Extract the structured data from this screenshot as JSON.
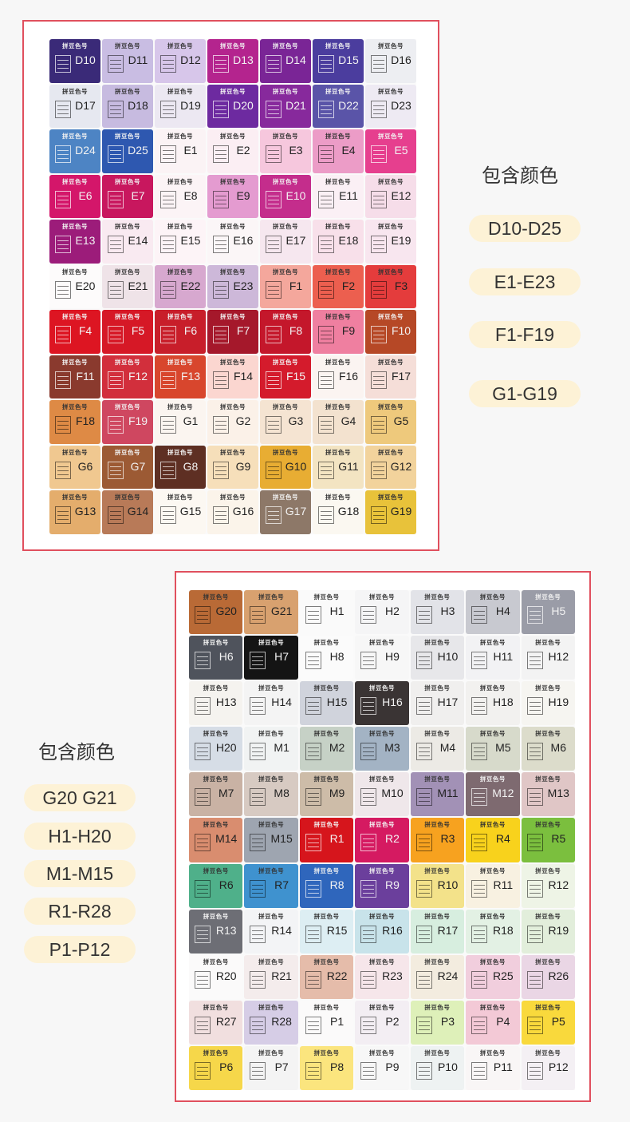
{
  "brand_label": "拼豆色号",
  "section1": {
    "title": "包含颜色",
    "ranges": [
      "D10-D25",
      "E1-E23",
      "F1-F19",
      "G1-G19"
    ],
    "swatches": [
      {
        "code": "D10",
        "color": "#3a2a78",
        "dark": true
      },
      {
        "code": "D11",
        "color": "#c9bde3"
      },
      {
        "code": "D12",
        "color": "#d7c6ea"
      },
      {
        "code": "D13",
        "color": "#b4248e",
        "dark": true
      },
      {
        "code": "D14",
        "color": "#7a2596",
        "dark": true
      },
      {
        "code": "D15",
        "color": "#4b3d9e",
        "dark": true
      },
      {
        "code": "D16",
        "color": "#edeef2"
      },
      {
        "code": "D17",
        "color": "#e6e8f0"
      },
      {
        "code": "D18",
        "color": "#c7bbe0"
      },
      {
        "code": "D19",
        "color": "#ece8f2"
      },
      {
        "code": "D20",
        "color": "#6d2aa0",
        "dark": true
      },
      {
        "code": "D21",
        "color": "#87299c",
        "dark": true
      },
      {
        "code": "D22",
        "color": "#5a54a8",
        "dark": true
      },
      {
        "code": "D23",
        "color": "#eeeaf3"
      },
      {
        "code": "D24",
        "color": "#4d84c4",
        "dark": true
      },
      {
        "code": "D25",
        "color": "#2e58b0",
        "dark": true
      },
      {
        "code": "E1",
        "color": "#fbf3f5"
      },
      {
        "code": "E2",
        "color": "#fbeef3"
      },
      {
        "code": "E3",
        "color": "#f6c7dd"
      },
      {
        "code": "E4",
        "color": "#ec9cc7"
      },
      {
        "code": "E5",
        "color": "#e63f8e",
        "dark": true
      },
      {
        "code": "E6",
        "color": "#d4166a",
        "dark": true
      },
      {
        "code": "E7",
        "color": "#c8175e",
        "dark": true
      },
      {
        "code": "E8",
        "color": "#fcf4f6"
      },
      {
        "code": "E9",
        "color": "#e49bd0"
      },
      {
        "code": "E10",
        "color": "#c42d8c",
        "dark": true
      },
      {
        "code": "E11",
        "color": "#fbf0f5"
      },
      {
        "code": "E12",
        "color": "#f6dde9"
      },
      {
        "code": "E13",
        "color": "#9c1c7a",
        "dark": true
      },
      {
        "code": "E14",
        "color": "#f9eaf1"
      },
      {
        "code": "E15",
        "color": "#fdf4f7"
      },
      {
        "code": "E16",
        "color": "#fbf6f7"
      },
      {
        "code": "E17",
        "color": "#f6e7ef"
      },
      {
        "code": "E18",
        "color": "#f8e0ea"
      },
      {
        "code": "E19",
        "color": "#f8e6ef"
      },
      {
        "code": "E20",
        "color": "#fdfbfb"
      },
      {
        "code": "E21",
        "color": "#efe3e8"
      },
      {
        "code": "E22",
        "color": "#d7a8cf"
      },
      {
        "code": "E23",
        "color": "#cdb8d9"
      },
      {
        "code": "F1",
        "color": "#f4a79c"
      },
      {
        "code": "F2",
        "color": "#ec5f4f"
      },
      {
        "code": "F3",
        "color": "#e43c3c"
      },
      {
        "code": "F4",
        "color": "#dd1522",
        "dark": true
      },
      {
        "code": "F5",
        "color": "#d61826",
        "dark": true
      },
      {
        "code": "F6",
        "color": "#c81e2a",
        "dark": true
      },
      {
        "code": "F7",
        "color": "#a5182b",
        "dark": true
      },
      {
        "code": "F8",
        "color": "#c4172b",
        "dark": true
      },
      {
        "code": "F9",
        "color": "#ef7fa0"
      },
      {
        "code": "F10",
        "color": "#b64826",
        "dark": true
      },
      {
        "code": "F11",
        "color": "#8a3a2e",
        "dark": true
      },
      {
        "code": "F12",
        "color": "#d22f3c",
        "dark": true
      },
      {
        "code": "F13",
        "color": "#d8462d",
        "dark": true
      },
      {
        "code": "F14",
        "color": "#fbd6d0"
      },
      {
        "code": "F15",
        "color": "#d41b2c",
        "dark": true
      },
      {
        "code": "F16",
        "color": "#fbf4f1"
      },
      {
        "code": "F17",
        "color": "#f5ded8"
      },
      {
        "code": "F18",
        "color": "#de8a45"
      },
      {
        "code": "F19",
        "color": "#cf4760",
        "dark": true
      },
      {
        "code": "G1",
        "color": "#fbf5f0"
      },
      {
        "code": "G2",
        "color": "#fbf1e8"
      },
      {
        "code": "G3",
        "color": "#f5e4d2"
      },
      {
        "code": "G4",
        "color": "#f3e2cf"
      },
      {
        "code": "G5",
        "color": "#eec97c"
      },
      {
        "code": "G6",
        "color": "#f0c890"
      },
      {
        "code": "G7",
        "color": "#9c5a34",
        "dark": true
      },
      {
        "code": "G8",
        "color": "#5e2f23",
        "dark": true
      },
      {
        "code": "G9",
        "color": "#f6dfba"
      },
      {
        "code": "G10",
        "color": "#e8ad33"
      },
      {
        "code": "G11",
        "color": "#f3e4c2"
      },
      {
        "code": "G12",
        "color": "#f2d39c"
      },
      {
        "code": "G13",
        "color": "#e4ad6c"
      },
      {
        "code": "G14",
        "color": "#b87a58"
      },
      {
        "code": "G15",
        "color": "#fcf8f2"
      },
      {
        "code": "G16",
        "color": "#fbf4ea"
      },
      {
        "code": "G17",
        "color": "#8d7868",
        "dark": true
      },
      {
        "code": "G18",
        "color": "#fbf8f1"
      },
      {
        "code": "G19",
        "color": "#e8c23a"
      }
    ]
  },
  "section2": {
    "title": "包含颜色",
    "ranges": [
      "G20 G21",
      "H1-H20",
      "M1-M15",
      "R1-R28",
      "P1-P12"
    ],
    "swatches": [
      {
        "code": "G20",
        "color": "#b96a36"
      },
      {
        "code": "G21",
        "color": "#d8a16f"
      },
      {
        "code": "H1",
        "color": "#fafafa"
      },
      {
        "code": "H2",
        "color": "#f5f5f6"
      },
      {
        "code": "H3",
        "color": "#e2e3e8"
      },
      {
        "code": "H4",
        "color": "#c8c9d0"
      },
      {
        "code": "H5",
        "color": "#9a9ca7",
        "dark": true
      },
      {
        "code": "H6",
        "color": "#4f535c",
        "dark": true
      },
      {
        "code": "H7",
        "color": "#141414",
        "dark": true
      },
      {
        "code": "H8",
        "color": "#fbfbfb"
      },
      {
        "code": "H9",
        "color": "#f7f7f7"
      },
      {
        "code": "H10",
        "color": "#e7e7ea"
      },
      {
        "code": "H11",
        "color": "#f2f2f4"
      },
      {
        "code": "H12",
        "color": "#f3f3f3"
      },
      {
        "code": "H13",
        "color": "#f5f3ef"
      },
      {
        "code": "H14",
        "color": "#f4f4f4"
      },
      {
        "code": "H15",
        "color": "#d0d3dc"
      },
      {
        "code": "H16",
        "color": "#3a3434",
        "dark": true
      },
      {
        "code": "H17",
        "color": "#f0efee"
      },
      {
        "code": "H18",
        "color": "#f2f1ef"
      },
      {
        "code": "H19",
        "color": "#f6f5f1"
      },
      {
        "code": "H20",
        "color": "#d6dde6"
      },
      {
        "code": "M1",
        "color": "#f1f3f3"
      },
      {
        "code": "M2",
        "color": "#c6d1c6"
      },
      {
        "code": "M3",
        "color": "#a3b3c4"
      },
      {
        "code": "M4",
        "color": "#eceae5"
      },
      {
        "code": "M5",
        "color": "#d7dacb"
      },
      {
        "code": "M6",
        "color": "#dcdccb"
      },
      {
        "code": "M7",
        "color": "#c9b2a4"
      },
      {
        "code": "M8",
        "color": "#d7cac2"
      },
      {
        "code": "M9",
        "color": "#cdbca8"
      },
      {
        "code": "M10",
        "color": "#efe7ea"
      },
      {
        "code": "M11",
        "color": "#a291b6"
      },
      {
        "code": "M12",
        "color": "#7e6a70",
        "dark": true
      },
      {
        "code": "M13",
        "color": "#e0c6c6"
      },
      {
        "code": "M14",
        "color": "#d98d6f"
      },
      {
        "code": "M15",
        "color": "#9ea5b0"
      },
      {
        "code": "R1",
        "color": "#d6151c",
        "dark": true
      },
      {
        "code": "R2",
        "color": "#d51a61",
        "dark": true
      },
      {
        "code": "R3",
        "color": "#f7a21f"
      },
      {
        "code": "R4",
        "color": "#f8d21c"
      },
      {
        "code": "R5",
        "color": "#7bbf3e"
      },
      {
        "code": "R6",
        "color": "#4fb08a"
      },
      {
        "code": "R7",
        "color": "#3f92cf"
      },
      {
        "code": "R8",
        "color": "#2f66bc",
        "dark": true
      },
      {
        "code": "R9",
        "color": "#6b3f9c",
        "dark": true
      },
      {
        "code": "R10",
        "color": "#f3e28a"
      },
      {
        "code": "R11",
        "color": "#f8f1e1"
      },
      {
        "code": "R12",
        "color": "#eef4e6"
      },
      {
        "code": "R13",
        "color": "#6d6e75",
        "dark": true
      },
      {
        "code": "R14",
        "color": "#f3f4f6"
      },
      {
        "code": "R15",
        "color": "#ddeef3"
      },
      {
        "code": "R16",
        "color": "#c8e3ea"
      },
      {
        "code": "R17",
        "color": "#d7eedf"
      },
      {
        "code": "R18",
        "color": "#e3f1e4"
      },
      {
        "code": "R19",
        "color": "#e2eedb"
      },
      {
        "code": "R20",
        "color": "#fbfafa"
      },
      {
        "code": "R21",
        "color": "#f4ecec"
      },
      {
        "code": "R22",
        "color": "#e5bcaa"
      },
      {
        "code": "R23",
        "color": "#f6e6ea"
      },
      {
        "code": "R24",
        "color": "#f3ecdf"
      },
      {
        "code": "R25",
        "color": "#f1cedd"
      },
      {
        "code": "R26",
        "color": "#ead6e5"
      },
      {
        "code": "R27",
        "color": "#f1dfdf"
      },
      {
        "code": "R28",
        "color": "#d6cde6"
      },
      {
        "code": "P1",
        "color": "#fbfafa"
      },
      {
        "code": "P2",
        "color": "#f3eef3"
      },
      {
        "code": "P3",
        "color": "#def0b9"
      },
      {
        "code": "P4",
        "color": "#f3c9d6"
      },
      {
        "code": "P5",
        "color": "#f9d93c"
      },
      {
        "code": "P6",
        "color": "#f6d74a"
      },
      {
        "code": "P7",
        "color": "#f4f4f4"
      },
      {
        "code": "P8",
        "color": "#fbe57e"
      },
      {
        "code": "P9",
        "color": "#f7f7f7"
      },
      {
        "code": "P10",
        "color": "#eef2f2"
      },
      {
        "code": "P11",
        "color": "#f9f6f6"
      },
      {
        "code": "P12",
        "color": "#f4f0f4"
      }
    ]
  }
}
